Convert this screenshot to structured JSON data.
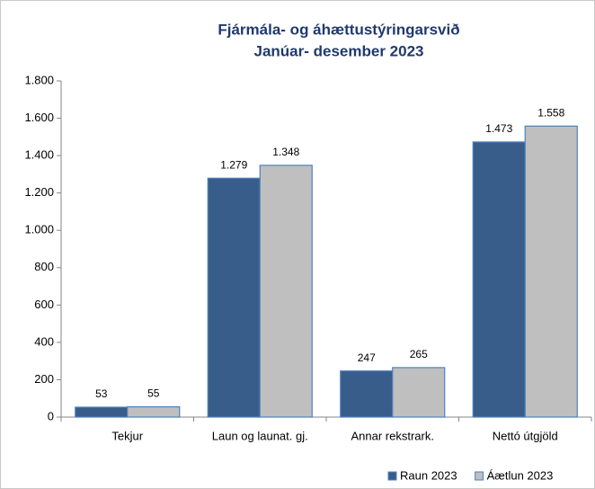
{
  "chart_data": {
    "type": "bar",
    "title": "Fjármála- og áhættustýringarsvið",
    "subtitle": "Janúar- desember 2023",
    "categories": [
      "Tekjur",
      "Laun og launat. gj.",
      "Annar rekstrark.",
      "Nettó útgjöld"
    ],
    "series": [
      {
        "name": "Raun 2023",
        "color": "#385d8a",
        "values": [
          53,
          1279,
          247,
          1473
        ],
        "value_labels": [
          "53",
          "1.279",
          "247",
          "1.473"
        ]
      },
      {
        "name": "Áætlun 2023",
        "color": "#bfbfbf",
        "values": [
          55,
          1348,
          265,
          1558
        ],
        "value_labels": [
          "55",
          "1.348",
          "265",
          "1.558"
        ]
      }
    ],
    "ylim": [
      0,
      1800
    ],
    "yticks": [
      0,
      200,
      400,
      600,
      800,
      {
        "value": 1000,
        "label": "1.000"
      },
      {
        "value": 1200,
        "label": "1.200"
      },
      {
        "value": 1400,
        "label": "1.400"
      },
      {
        "value": 1600,
        "label": "1.600"
      },
      {
        "value": 1800,
        "label": "1.800"
      }
    ],
    "grid": false,
    "legend": "bottom-right"
  }
}
